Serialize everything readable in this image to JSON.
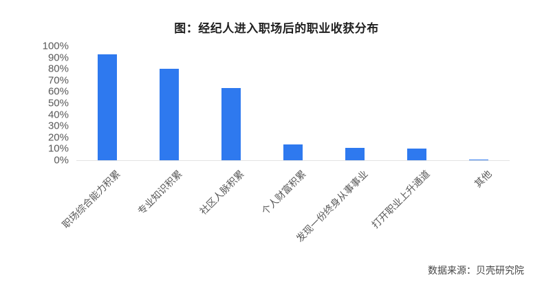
{
  "page": {
    "background": "#ffffff"
  },
  "chart_data": {
    "type": "bar",
    "title": "图：经纪人进入职场后的职业收获分布",
    "categories": [
      "职场综合能力积累",
      "专业知识积累",
      "社区人脉积累",
      "个人财富积累",
      "发现一份终身从事事业",
      "打开职业上升通道",
      "其他"
    ],
    "values": [
      93,
      80,
      63,
      14,
      11,
      10,
      0.5
    ],
    "value_unit": "%",
    "xlabel": "",
    "ylabel": "",
    "ylim": [
      0,
      100
    ],
    "ytick_step": 10,
    "ytick_labels": [
      "0%",
      "10%",
      "20%",
      "30%",
      "40%",
      "50%",
      "60%",
      "70%",
      "80%",
      "90%",
      "100%"
    ],
    "grid": false,
    "legend_position": "none",
    "bar_color": "#2E79EF",
    "axis_text_color": "#595959",
    "baseline_color": "#e3e3e3",
    "source_note": "数据来源：贝壳研究院"
  }
}
